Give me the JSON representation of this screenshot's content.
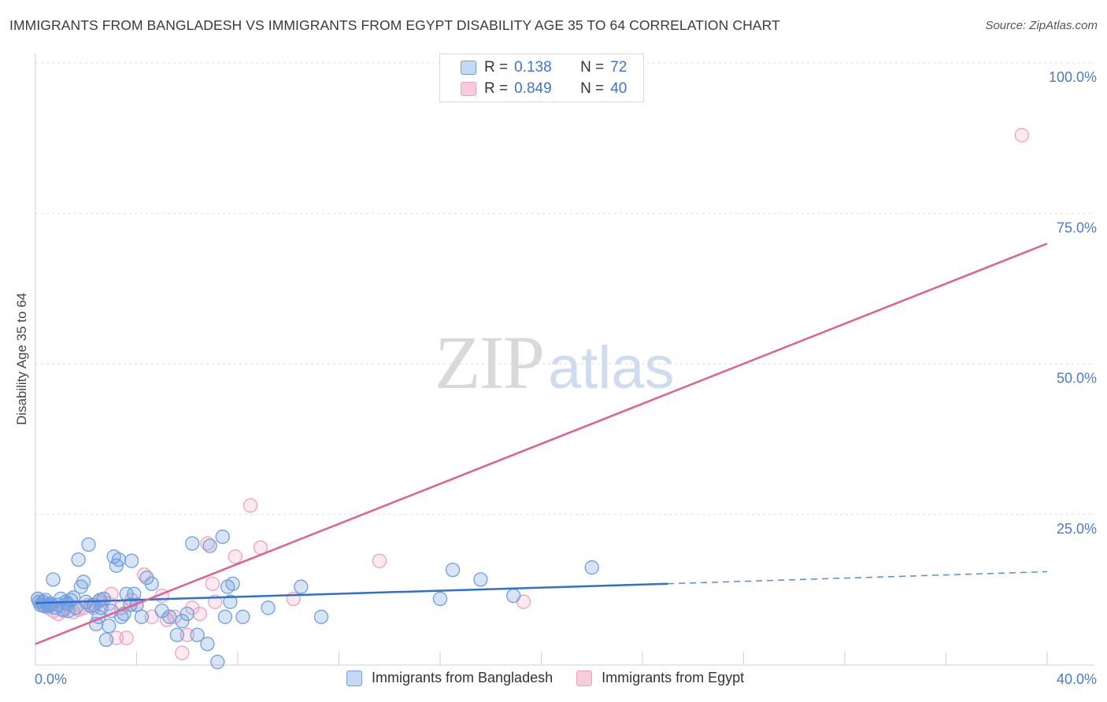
{
  "chart_data": {
    "type": "scatter",
    "title": "IMMIGRANTS FROM BANGLADESH VS IMMIGRANTS FROM EGYPT DISABILITY AGE 35 TO 64 CORRELATION CHART",
    "source": "Source: ZipAtlas.com",
    "ylabel": "Disability Age 35 to 64",
    "xlim": [
      0,
      40
    ],
    "ylim": [
      0,
      100
    ],
    "x_tick_labels": [
      "0.0%",
      "40.0%"
    ],
    "y_ticks": [
      {
        "value": 100,
        "label": "100.0%"
      },
      {
        "value": 75,
        "label": "75.0%"
      },
      {
        "value": 50,
        "label": "50.0%"
      },
      {
        "value": 25,
        "label": "25.0%"
      }
    ],
    "watermark": {
      "zip": "ZIP",
      "atlas": "atlas"
    },
    "legend_stats": [
      {
        "r_label": "R =",
        "r_value": "0.138",
        "n_label": "N =",
        "n_value": "72"
      },
      {
        "r_label": "R =",
        "r_value": "0.849",
        "n_label": "N =",
        "n_value": "40"
      }
    ],
    "series": [
      {
        "name": "Immigrants from Bangladesh",
        "color": "#6f9fe0",
        "line_color": "#2f6fcf",
        "trend": {
          "x0": 0,
          "y0": 10.3,
          "x1": 25,
          "y1": 13.5,
          "dash_to_x": 40,
          "dash_to_y": 15.5
        },
        "points": [
          [
            0.1,
            11.0
          ],
          [
            0.2,
            10.0
          ],
          [
            0.3,
            10.5
          ],
          [
            0.4,
            10.8
          ],
          [
            0.5,
            9.8
          ],
          [
            0.6,
            10.2
          ],
          [
            0.7,
            14.2
          ],
          [
            0.8,
            9.5
          ],
          [
            0.9,
            10.0
          ],
          [
            1.0,
            11.0
          ],
          [
            1.1,
            9.2
          ],
          [
            1.2,
            10.5
          ],
          [
            1.3,
            9.0
          ],
          [
            1.4,
            10.8
          ],
          [
            1.5,
            11.2
          ],
          [
            1.6,
            9.5
          ],
          [
            1.7,
            17.5
          ],
          [
            1.8,
            13.0
          ],
          [
            1.9,
            13.8
          ],
          [
            2.0,
            10.5
          ],
          [
            2.1,
            20.0
          ],
          [
            2.2,
            9.8
          ],
          [
            2.3,
            10.0
          ],
          [
            2.4,
            6.8
          ],
          [
            2.5,
            8.0
          ],
          [
            2.6,
            9.5
          ],
          [
            2.7,
            11.0
          ],
          [
            2.8,
            4.2
          ],
          [
            2.9,
            6.5
          ],
          [
            3.0,
            9.0
          ],
          [
            3.1,
            18.0
          ],
          [
            3.2,
            16.5
          ],
          [
            3.3,
            17.5
          ],
          [
            3.4,
            8.0
          ],
          [
            3.5,
            8.5
          ],
          [
            3.6,
            11.8
          ],
          [
            3.8,
            17.3
          ],
          [
            3.9,
            11.8
          ],
          [
            4.0,
            10.0
          ],
          [
            4.2,
            8.0
          ],
          [
            4.4,
            14.5
          ],
          [
            4.6,
            13.5
          ],
          [
            5.0,
            9.0
          ],
          [
            5.3,
            8.0
          ],
          [
            5.6,
            5.0
          ],
          [
            5.8,
            7.3
          ],
          [
            6.0,
            8.5
          ],
          [
            6.2,
            20.2
          ],
          [
            6.4,
            5.0
          ],
          [
            6.8,
            3.5
          ],
          [
            6.9,
            19.8
          ],
          [
            7.2,
            0.5
          ],
          [
            7.4,
            21.3
          ],
          [
            7.5,
            8.0
          ],
          [
            7.6,
            13.0
          ],
          [
            7.7,
            10.5
          ],
          [
            7.8,
            13.5
          ],
          [
            8.2,
            8.0
          ],
          [
            9.2,
            9.5
          ],
          [
            10.5,
            13.0
          ],
          [
            11.3,
            8.0
          ],
          [
            16.0,
            11.0
          ],
          [
            16.5,
            15.8
          ],
          [
            17.6,
            14.2
          ],
          [
            18.9,
            11.5
          ],
          [
            22.0,
            16.2
          ],
          [
            0.15,
            10.5
          ],
          [
            0.35,
            9.8
          ],
          [
            1.25,
            10.2
          ],
          [
            2.55,
            10.8
          ],
          [
            3.75,
            10.0
          ],
          [
            0.55,
            10.0
          ]
        ]
      },
      {
        "name": "Immigrants from Egypt",
        "color": "#f0a0bc",
        "line_color": "#e2608e",
        "trend": {
          "x0": 0,
          "y0": 3.5,
          "x1": 40,
          "y1": 70.0
        },
        "points": [
          [
            0.1,
            11.0
          ],
          [
            0.3,
            10.0
          ],
          [
            0.5,
            9.5
          ],
          [
            0.7,
            9.0
          ],
          [
            0.9,
            8.5
          ],
          [
            1.1,
            9.0
          ],
          [
            1.3,
            10.0
          ],
          [
            1.5,
            8.8
          ],
          [
            1.7,
            9.2
          ],
          [
            1.9,
            9.5
          ],
          [
            2.1,
            10.0
          ],
          [
            2.3,
            9.5
          ],
          [
            2.5,
            10.5
          ],
          [
            2.7,
            11.0
          ],
          [
            2.9,
            10.2
          ],
          [
            3.0,
            11.8
          ],
          [
            3.2,
            4.5
          ],
          [
            3.4,
            9.5
          ],
          [
            3.6,
            4.5
          ],
          [
            3.8,
            10.8
          ],
          [
            4.0,
            10.0
          ],
          [
            4.3,
            15.0
          ],
          [
            4.6,
            8.0
          ],
          [
            5.0,
            11.5
          ],
          [
            5.2,
            7.5
          ],
          [
            5.5,
            8.0
          ],
          [
            5.8,
            2.0
          ],
          [
            6.0,
            5.0
          ],
          [
            6.2,
            9.5
          ],
          [
            6.5,
            8.5
          ],
          [
            6.8,
            20.2
          ],
          [
            7.0,
            13.5
          ],
          [
            7.1,
            10.5
          ],
          [
            7.9,
            18.0
          ],
          [
            8.5,
            26.5
          ],
          [
            8.9,
            19.5
          ],
          [
            10.2,
            11.0
          ],
          [
            13.6,
            17.3
          ],
          [
            19.3,
            10.5
          ],
          [
            39.0,
            88.0
          ]
        ]
      }
    ]
  }
}
